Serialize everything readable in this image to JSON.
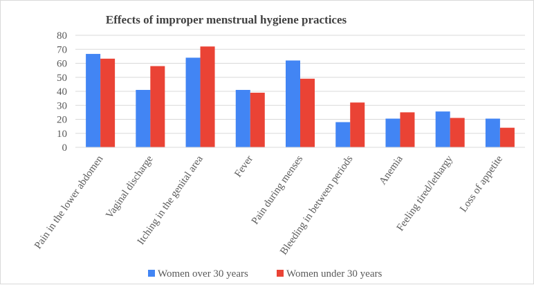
{
  "chart_data": {
    "type": "bar",
    "title": "Effects of improper menstrual hygiene practices",
    "xlabel": "",
    "ylabel": "",
    "ylim": [
      0,
      80
    ],
    "yticks": [
      0,
      10,
      20,
      30,
      40,
      50,
      60,
      70,
      80
    ],
    "grid": true,
    "legend_position": "bottom",
    "categories": [
      "Pain in the lower abdomen",
      "Vaginal discharge",
      "Itching in the genital area",
      "Fever",
      "Pain during menses",
      "Bleeding in between periods",
      "Anemia",
      "Feeling tired/lethargy",
      "Loss of appetite"
    ],
    "series": [
      {
        "name": "Women over 30 years",
        "color": "#4285f4",
        "values": [
          66.7,
          41,
          64,
          41,
          62,
          18,
          20.5,
          25.6,
          20.5
        ]
      },
      {
        "name": "Women under 30 years",
        "color": "#ea4335",
        "values": [
          63.3,
          58,
          72,
          39,
          49,
          32,
          25,
          21,
          14
        ]
      }
    ]
  }
}
